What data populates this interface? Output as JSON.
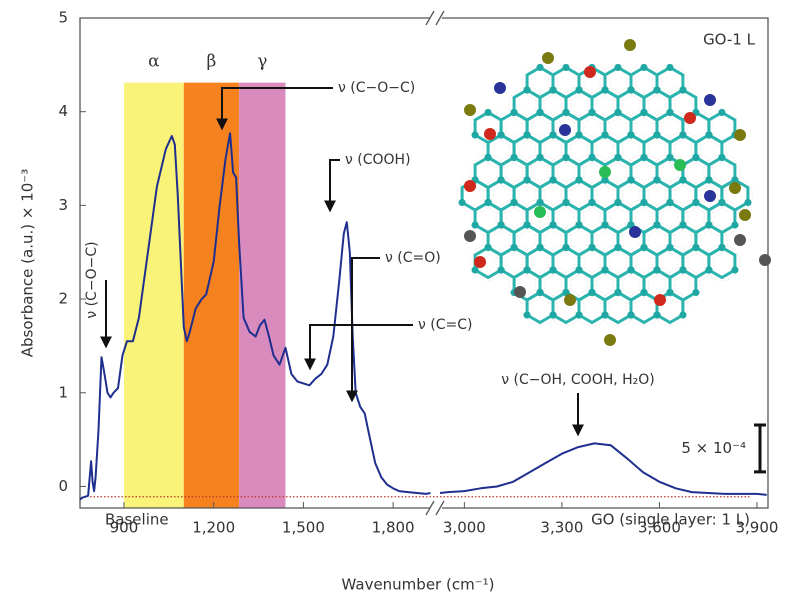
{
  "chart_data": {
    "type": "line",
    "x_label": "Wavenumber (cm⁻¹)",
    "y_label": "Absorbance (a.u.) × 10⁻³",
    "ylim": [
      -0.23,
      5
    ],
    "yticks": [
      0,
      1,
      2,
      3,
      4,
      5
    ],
    "color": "#1f2f8f",
    "segments": [
      {
        "xlim": [
          753,
          1930
        ],
        "xticks": [
          900,
          {
            "value": 1200,
            "label": "1,200"
          },
          {
            "value": 1500,
            "label": "1,500"
          },
          {
            "value": 1800,
            "label": "1,800"
          }
        ],
        "x": [
          753,
          760,
          780,
          790,
          795,
          800,
          805,
          815,
          825,
          835,
          845,
          855,
          865,
          880,
          895,
          910,
          930,
          950,
          980,
          1010,
          1040,
          1060,
          1070,
          1080,
          1090,
          1100,
          1110,
          1120,
          1140,
          1160,
          1175,
          1200,
          1220,
          1240,
          1255,
          1265,
          1275,
          1285,
          1300,
          1320,
          1340,
          1355,
          1370,
          1385,
          1400,
          1420,
          1440,
          1460,
          1480,
          1500,
          1520,
          1540,
          1560,
          1580,
          1600,
          1620,
          1635,
          1645,
          1655,
          1665,
          1675,
          1690,
          1705,
          1720,
          1740,
          1760,
          1780,
          1800,
          1820,
          1850,
          1880,
          1910,
          1925
        ],
        "values": [
          -0.14,
          -0.12,
          -0.1,
          0.27,
          0.05,
          -0.05,
          0.1,
          0.6,
          1.38,
          1.2,
          1.0,
          0.95,
          1.0,
          1.05,
          1.4,
          1.55,
          1.55,
          1.8,
          2.5,
          3.2,
          3.6,
          3.74,
          3.65,
          3.1,
          2.4,
          1.7,
          1.55,
          1.65,
          1.9,
          2.0,
          2.05,
          2.4,
          3.0,
          3.5,
          3.77,
          3.35,
          3.3,
          2.6,
          1.8,
          1.65,
          1.6,
          1.72,
          1.78,
          1.6,
          1.4,
          1.3,
          1.48,
          1.2,
          1.12,
          1.1,
          1.08,
          1.15,
          1.2,
          1.3,
          1.6,
          2.2,
          2.7,
          2.82,
          2.5,
          1.6,
          1.0,
          0.85,
          0.78,
          0.55,
          0.25,
          0.1,
          0.02,
          -0.02,
          -0.05,
          -0.06,
          -0.07,
          -0.08,
          -0.07
        ]
      },
      {
        "xlim": [
          2925,
          3934
        ],
        "xticks": [
          {
            "value": 3000,
            "label": "3,000"
          },
          {
            "value": 3300,
            "label": "3,300"
          },
          {
            "value": 3600,
            "label": "3,600"
          },
          {
            "value": 3900,
            "label": "3,900"
          }
        ],
        "x": [
          2925,
          2950,
          3000,
          3050,
          3100,
          3150,
          3200,
          3250,
          3300,
          3350,
          3400,
          3450,
          3500,
          3550,
          3600,
          3650,
          3700,
          3750,
          3800,
          3850,
          3900,
          3930
        ],
        "values": [
          -0.07,
          -0.06,
          -0.05,
          -0.02,
          0.0,
          0.05,
          0.15,
          0.25,
          0.35,
          0.42,
          0.46,
          0.44,
          0.3,
          0.15,
          0.05,
          -0.02,
          -0.06,
          -0.07,
          -0.08,
          -0.08,
          -0.08,
          -0.09
        ]
      }
    ],
    "bands": [
      {
        "label": "α",
        "from": 900,
        "to": 1100,
        "top": 4.31,
        "color": "#faf37a"
      },
      {
        "label": "β",
        "from": 1100,
        "to": 1285,
        "top": 4.31,
        "color": "#f5821f"
      },
      {
        "label": "γ",
        "from": 1285,
        "to": 1440,
        "top": 4.31,
        "color": "#d98bbd"
      }
    ],
    "baseline": {
      "value": -0.11,
      "label": "Baseline",
      "color": "#c0392b"
    },
    "annotations": [
      "ν (C−O−C)",
      "ν (C−O−C)",
      "ν (COOH)",
      "ν (C=O)",
      "ν (C=C)",
      "ν (C−OH, COOH, H₂O)"
    ],
    "sample_label": "GO-1 L",
    "footnote": "GO (single layer: 1 L)",
    "scale_bar": {
      "value": 0.5,
      "label": "5 × 10⁻⁴"
    }
  }
}
